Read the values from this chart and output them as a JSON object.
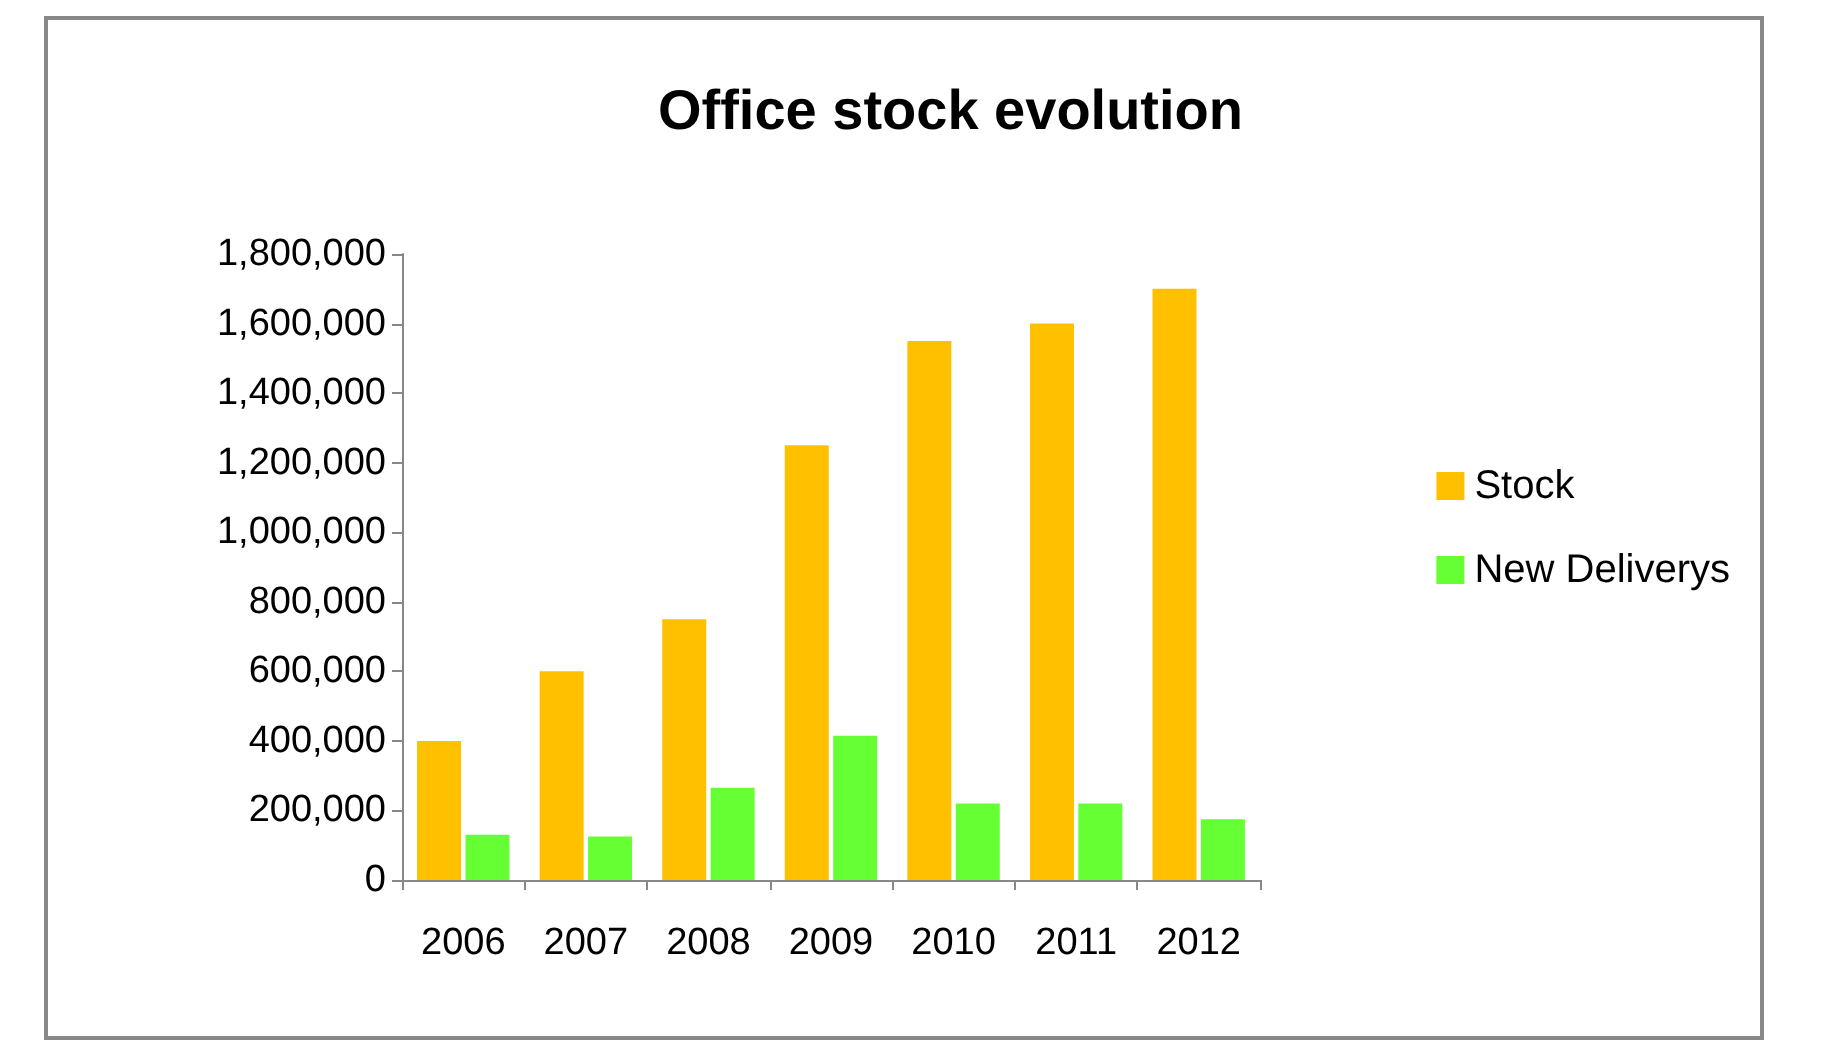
{
  "chart_data": {
    "type": "bar",
    "title": "Office stock evolution",
    "categories": [
      "2006",
      "2007",
      "2008",
      "2009",
      "2010",
      "2011",
      "2012"
    ],
    "series": [
      {
        "name": "Stock",
        "color": "#ffc000",
        "values": [
          400000,
          600000,
          750000,
          1250000,
          1550000,
          1600000,
          1700000
        ]
      },
      {
        "name": "New Deliverys",
        "color": "#66ff33",
        "values": [
          130000,
          125000,
          265000,
          415000,
          220000,
          220000,
          175000
        ]
      }
    ],
    "ylim": [
      0,
      1800000
    ],
    "yticks": [
      0,
      {
        "value": 200000,
        "label": "200,000"
      },
      {
        "value": 400000,
        "label": "400,000"
      },
      {
        "value": 600000,
        "label": "600,000"
      },
      {
        "value": 800000,
        "label": "800,000"
      },
      {
        "value": 1000000,
        "label": "1,000,000"
      },
      {
        "value": 1200000,
        "label": "1,200,000"
      },
      {
        "value": 1400000,
        "label": "1,400,000"
      },
      {
        "value": 1600000,
        "label": "1,600,000"
      },
      {
        "value": 1800000,
        "label": "1,800,000"
      }
    ],
    "grid": false,
    "legend": "right"
  }
}
